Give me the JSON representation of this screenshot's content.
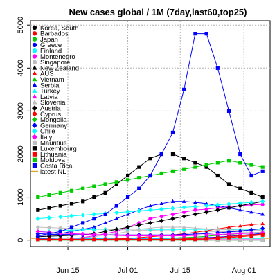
{
  "chart_data": {
    "type": "line",
    "title": "New cases global / 1M (7day,last60,top25)",
    "xlabel": "",
    "ylabel": "",
    "x_dates": [
      "2020-06-07",
      "2020-06-10",
      "2020-06-13",
      "2020-06-16",
      "2020-06-19",
      "2020-06-22",
      "2020-06-25",
      "2020-06-28",
      "2020-07-01",
      "2020-07-04",
      "2020-07-07",
      "2020-07-10",
      "2020-07-13",
      "2020-07-16",
      "2020-07-19",
      "2020-07-22",
      "2020-07-25",
      "2020-07-28",
      "2020-07-31",
      "2020-08-03",
      "2020-08-06"
    ],
    "x_ticks": [
      {
        "date": "2020-06-15",
        "label": "Jun 15"
      },
      {
        "date": "2020-07-01",
        "label": "Jul 01"
      },
      {
        "date": "2020-07-15",
        "label": "Jul 15"
      },
      {
        "date": "2020-08-01",
        "label": "Aug 01"
      }
    ],
    "x_range": [
      "2020-06-05",
      "2020-08-08"
    ],
    "ylim": [
      -150,
      5100
    ],
    "y_ticks": [
      0,
      1000,
      2000,
      3000,
      4000,
      5000
    ],
    "grid": true,
    "legend_position": "top-left",
    "reference_line": {
      "label": "latest NL",
      "value": 40,
      "color": "#daa520"
    },
    "series": [
      {
        "name": "Korea, South",
        "color": "#000000",
        "marker": "circle",
        "values": [
          5,
          5,
          5,
          5,
          5,
          5,
          5,
          5,
          5,
          5,
          5,
          5,
          5,
          5,
          5,
          5,
          5,
          5,
          5,
          5,
          5
        ]
      },
      {
        "name": "Barbados",
        "color": "#ff0000",
        "marker": "circle",
        "values": [
          10,
          10,
          10,
          10,
          10,
          10,
          10,
          10,
          10,
          10,
          10,
          10,
          10,
          10,
          10,
          10,
          10,
          10,
          10,
          10,
          10
        ]
      },
      {
        "name": "Japan",
        "color": "#00cd00",
        "marker": "circle",
        "values": [
          20,
          20,
          20,
          20,
          20,
          20,
          20,
          25,
          25,
          30,
          35,
          40,
          50,
          60,
          70,
          90,
          110,
          130,
          150,
          170,
          180
        ]
      },
      {
        "name": "Greece",
        "color": "#0000ff",
        "marker": "circle",
        "values": [
          30,
          30,
          30,
          30,
          30,
          30,
          30,
          30,
          30,
          30,
          35,
          35,
          40,
          40,
          50,
          60,
          70,
          90,
          110,
          130,
          160
        ]
      },
      {
        "name": "Finland",
        "color": "#00ffff",
        "marker": "circle",
        "values": [
          50,
          45,
          45,
          40,
          40,
          40,
          40,
          40,
          40,
          40,
          40,
          40,
          40,
          40,
          40,
          40,
          40,
          40,
          40,
          40,
          40
        ]
      },
      {
        "name": "Montenegro",
        "color": "#ff00ff",
        "marker": "circle",
        "values": [
          10,
          10,
          20,
          40,
          60,
          100,
          150,
          200,
          300,
          400,
          500,
          550,
          600,
          650,
          700,
          720,
          750,
          780,
          800,
          820,
          830
        ]
      },
      {
        "name": "Singapore",
        "color": "#bebebe",
        "marker": "circle",
        "values": [
          300,
          290,
          280,
          270,
          260,
          250,
          250,
          240,
          240,
          230,
          230,
          220,
          220,
          210,
          210,
          200,
          200,
          190,
          190,
          180,
          180
        ]
      },
      {
        "name": "New Zealand",
        "color": "#000000",
        "marker": "triangle",
        "values": [
          0,
          0,
          0,
          0,
          0,
          0,
          0,
          0,
          0,
          0,
          0,
          0,
          0,
          0,
          0,
          0,
          0,
          0,
          0,
          0,
          0
        ]
      },
      {
        "name": "AUS",
        "color": "#ff0000",
        "marker": "triangle",
        "values": [
          5,
          5,
          5,
          10,
          10,
          15,
          20,
          30,
          40,
          60,
          80,
          100,
          120,
          150,
          180,
          220,
          260,
          300,
          330,
          360,
          380
        ]
      },
      {
        "name": "Vietnam",
        "color": "#00cd00",
        "marker": "triangle",
        "values": [
          0,
          0,
          0,
          0,
          0,
          0,
          0,
          0,
          0,
          0,
          0,
          0,
          0,
          0,
          0,
          0,
          0,
          0,
          0,
          5,
          5
        ]
      },
      {
        "name": "Serbia",
        "color": "#0000ff",
        "marker": "triangle",
        "values": [
          100,
          120,
          150,
          200,
          250,
          300,
          400,
          500,
          600,
          700,
          800,
          850,
          900,
          900,
          880,
          850,
          800,
          750,
          700,
          650,
          600
        ]
      },
      {
        "name": "Turkey",
        "color": "#00ffff",
        "marker": "triangle",
        "values": [
          200,
          210,
          220,
          230,
          240,
          250,
          260,
          260,
          260,
          260,
          250,
          250,
          250,
          250,
          250,
          250,
          250,
          250,
          250,
          250,
          250
        ]
      },
      {
        "name": "Latvia",
        "color": "#ff00ff",
        "marker": "triangle",
        "values": [
          10,
          10,
          10,
          10,
          10,
          10,
          10,
          10,
          10,
          10,
          10,
          10,
          10,
          10,
          10,
          10,
          10,
          10,
          10,
          10,
          10
        ]
      },
      {
        "name": "Slovenia",
        "color": "#bebebe",
        "marker": "triangle",
        "values": [
          20,
          20,
          30,
          40,
          50,
          80,
          120,
          150,
          200,
          250,
          280,
          300,
          300,
          300,
          280,
          260,
          250,
          240,
          230,
          230,
          230
        ]
      },
      {
        "name": "Austria",
        "color": "#000000",
        "marker": "diamond",
        "values": [
          80,
          90,
          100,
          110,
          120,
          150,
          200,
          250,
          300,
          350,
          400,
          450,
          500,
          550,
          600,
          650,
          700,
          750,
          800,
          850,
          900
        ]
      },
      {
        "name": "Cyprus",
        "color": "#ff0000",
        "marker": "diamond",
        "values": [
          20,
          20,
          20,
          20,
          20,
          20,
          20,
          20,
          20,
          20,
          20,
          20,
          20,
          30,
          40,
          50,
          60,
          80,
          100,
          120,
          140
        ]
      },
      {
        "name": "Mongolia",
        "color": "#00cd00",
        "marker": "diamond",
        "values": [
          0,
          0,
          0,
          0,
          0,
          0,
          0,
          0,
          0,
          0,
          0,
          0,
          0,
          0,
          0,
          0,
          0,
          0,
          0,
          0,
          0
        ]
      },
      {
        "name": "Germany",
        "color": "#0000ff",
        "marker": "diamond",
        "values": [
          150,
          140,
          130,
          130,
          120,
          120,
          120,
          120,
          120,
          120,
          120,
          120,
          120,
          130,
          140,
          150,
          170,
          190,
          210,
          240,
          270
        ]
      },
      {
        "name": "Chile",
        "color": "#00ffff",
        "marker": "diamond",
        "values": [
          500,
          520,
          540,
          560,
          580,
          600,
          620,
          640,
          660,
          680,
          700,
          720,
          740,
          760,
          780,
          800,
          820,
          840,
          860,
          880,
          900
        ]
      },
      {
        "name": "Italy",
        "color": "#ff00ff",
        "marker": "diamond",
        "values": [
          200,
          180,
          160,
          150,
          140,
          130,
          120,
          110,
          100,
          100,
          100,
          100,
          100,
          100,
          110,
          120,
          130,
          140,
          150,
          160,
          170
        ]
      },
      {
        "name": "Mauritius",
        "color": "#bebebe",
        "marker": "square",
        "values": [
          0,
          0,
          0,
          0,
          0,
          0,
          0,
          0,
          0,
          0,
          0,
          0,
          0,
          0,
          0,
          0,
          0,
          0,
          0,
          0,
          0
        ]
      },
      {
        "name": "Luxembourg",
        "color": "#000000",
        "marker": "square",
        "values": [
          700,
          750,
          800,
          850,
          900,
          1000,
          1100,
          1300,
          1500,
          1700,
          1900,
          2000,
          2000,
          1900,
          1800,
          1700,
          1500,
          1300,
          1200,
          1100,
          1000
        ]
      },
      {
        "name": "Lithuania",
        "color": "#ff0000",
        "marker": "square",
        "values": [
          20,
          20,
          20,
          20,
          20,
          20,
          20,
          20,
          20,
          20,
          20,
          20,
          20,
          20,
          20,
          30,
          40,
          60,
          80,
          100,
          120
        ]
      },
      {
        "name": "Moldova",
        "color": "#00cd00",
        "marker": "square",
        "values": [
          1000,
          1050,
          1100,
          1150,
          1200,
          1250,
          1300,
          1350,
          1400,
          1450,
          1500,
          1550,
          1600,
          1650,
          1700,
          1750,
          1800,
          1850,
          1800,
          1750,
          1700
        ]
      },
      {
        "name": "Costa Rica",
        "color": "#0000ff",
        "marker": "square",
        "values": [
          100,
          150,
          200,
          300,
          400,
          500,
          600,
          800,
          1000,
          1200,
          1500,
          2000,
          2500,
          3500,
          4800,
          4800,
          4000,
          3000,
          2000,
          1500,
          1600
        ]
      }
    ]
  }
}
